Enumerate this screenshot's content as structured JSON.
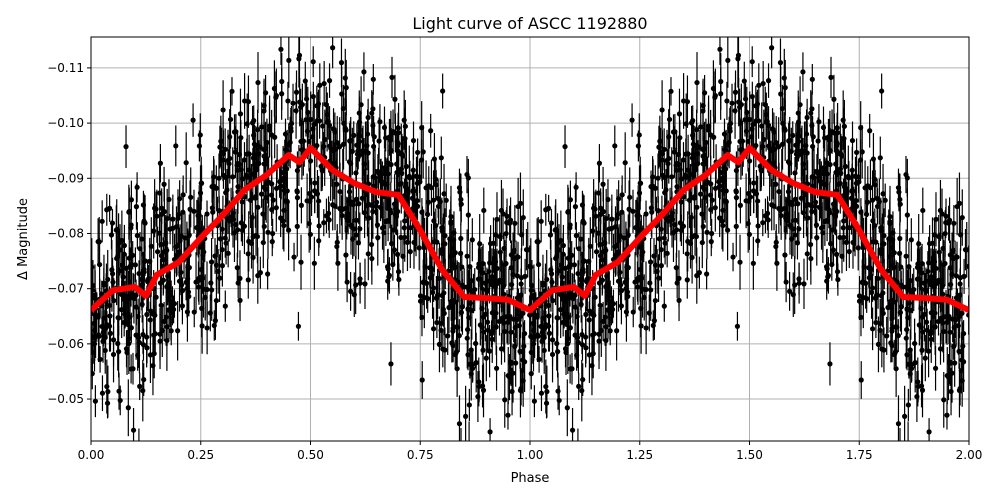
{
  "chart_data": {
    "type": "scatter",
    "title": "Light curve of ASCC 1192880",
    "xlabel": "Phase",
    "ylabel": "Δ Magnitude",
    "xlim": [
      0,
      2
    ],
    "ylim": [
      -0.0424,
      -0.1156
    ],
    "y_inverted": true,
    "grid": true,
    "xticks": [
      "0.00",
      "0.25",
      "0.50",
      "0.75",
      "1.00",
      "1.25",
      "1.50",
      "1.75",
      "2.00"
    ],
    "xtick_values": [
      0,
      0.25,
      0.5,
      0.75,
      1,
      1.25,
      1.5,
      1.75,
      2
    ],
    "yticks": [
      "−0.11",
      "−0.10",
      "−0.09",
      "−0.08",
      "−0.07",
      "−0.06",
      "−0.05"
    ],
    "ytick_values": [
      -0.11,
      -0.1,
      -0.09,
      -0.08,
      -0.07,
      -0.06,
      -0.05
    ],
    "scatter": {
      "color": "#000000",
      "points_per_period": 1100,
      "scatter_sigma": 0.011,
      "error_halfwidth": 0.004
    },
    "model_curve": {
      "color": "#ff0000",
      "period": 1,
      "phase": [
        0,
        0.05,
        0.1,
        0.125,
        0.15,
        0.2,
        0.25,
        0.3,
        0.35,
        0.4,
        0.45,
        0.475,
        0.5,
        0.55,
        0.6,
        0.65,
        0.7,
        0.75,
        0.8,
        0.85,
        0.9,
        0.95,
        1.0
      ],
      "magnitude": [
        -0.0661,
        -0.0697,
        -0.0703,
        -0.0687,
        -0.0725,
        -0.0748,
        -0.0792,
        -0.0833,
        -0.0879,
        -0.0906,
        -0.0942,
        -0.0929,
        -0.0955,
        -0.0915,
        -0.0891,
        -0.0875,
        -0.087,
        -0.0806,
        -0.0734,
        -0.0685,
        -0.0683,
        -0.068,
        -0.0661
      ]
    }
  }
}
